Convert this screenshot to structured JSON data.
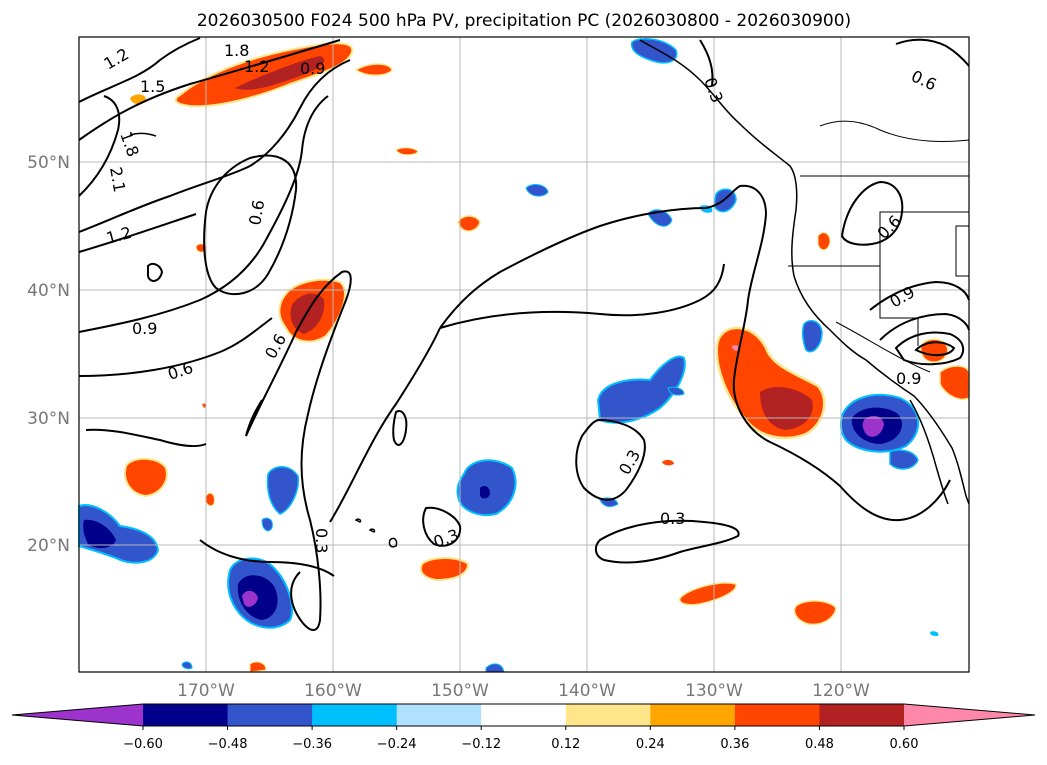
{
  "title": "2026030500 F024 500 hPa PV, precipitation PC (2026030800 - 2026030900)",
  "lat_labels": [
    "50°N",
    "40°N",
    "30°N",
    "20°N"
  ],
  "lon_labels": [
    "170°W",
    "160°W",
    "150°W",
    "140°W",
    "130°W",
    "120°W"
  ],
  "contour_labels": [
    "1.2",
    "1.5",
    "1.8",
    "0.9",
    "1.2",
    "2.1",
    "1.8",
    "1.2",
    "0.9",
    "0.6",
    "0.6",
    "0.3",
    "0.3",
    "0.3",
    "0.3",
    "0.6",
    "0.6",
    "0.9",
    "0.9",
    "0.6",
    "0.3"
  ],
  "colorbar": {
    "ticks": [
      "−0.60",
      "−0.48",
      "−0.36",
      "−0.24",
      "−0.12",
      "0.12",
      "0.24",
      "0.36",
      "0.48",
      "0.60"
    ],
    "colors": [
      "#9b33cc",
      "#00008b",
      "#3355cc",
      "#00bfff",
      "#b0e2ff",
      "#ffffff",
      "#ffe68a",
      "#ffa500",
      "#ff4500",
      "#b22222",
      "#ff88aa"
    ]
  }
}
